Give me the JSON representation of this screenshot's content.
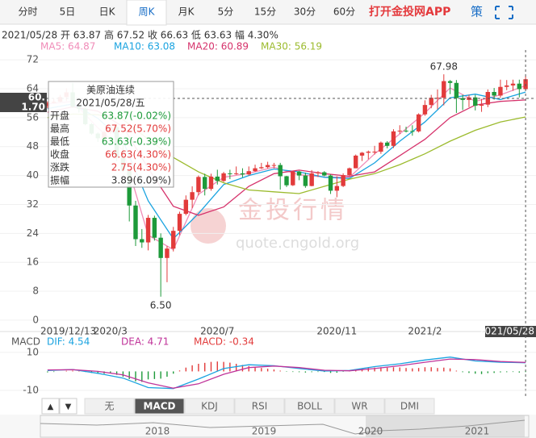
{
  "tabs": [
    "分时",
    "5日",
    "日K",
    "周K",
    "月K",
    "5分",
    "15分",
    "30分",
    "60分"
  ],
  "active_tab": 3,
  "app_link": "打开金投网APP",
  "strategy": "策",
  "quote_line": "2021/05/28 开 63.87 高 67.52 收 66.63 低 63.63 幅 4.30%",
  "crosshair": [
    "60.",
    "1.70"
  ],
  "watermark": [
    "金投行情",
    "quote.cngold.org"
  ],
  "tooltip": {
    "title": "美原油连续",
    "date": "2021/05/28/五",
    "rows": [
      {
        "label": "开盘",
        "value": "63.87(-0.02%)",
        "color": "#1d9a3a"
      },
      {
        "label": "最高",
        "value": "67.52(5.70%)",
        "color": "#e23b3b"
      },
      {
        "label": "最低",
        "value": "63.63(-0.39%)",
        "color": "#1d9a3a"
      },
      {
        "label": "收盘",
        "value": "66.63(4.30%)",
        "color": "#e23b3b"
      },
      {
        "label": "涨跌",
        "value": "2.75(4.30%)",
        "color": "#e23b3b"
      },
      {
        "label": "振幅",
        "value": "3.89(6.09%)",
        "color": "#333333"
      }
    ]
  },
  "indicators": [
    "无",
    "MACD",
    "KDJ",
    "RSI",
    "BOLL",
    "WR",
    "DMI"
  ],
  "active_indicator": 1,
  "buttons": [
    "▲",
    "▼"
  ],
  "navigator": [
    "2018",
    "2019",
    "2020",
    "2021"
  ],
  "chart_data": [
    {
      "type": "candlestick",
      "up_color": "#e23b3b",
      "down_color": "#1d9a3a",
      "categories": [
        "2019/12/13",
        null,
        null,
        null,
        null,
        null,
        null,
        null,
        null,
        null,
        "2020/3",
        null,
        null,
        null,
        null,
        null,
        null,
        null,
        null,
        null,
        null,
        null,
        null,
        null,
        null,
        null,
        null,
        "2020/7",
        null,
        null,
        null,
        null,
        null,
        null,
        null,
        null,
        null,
        null,
        null,
        null,
        null,
        null,
        null,
        null,
        null,
        null,
        "2020/11",
        null,
        null,
        null,
        null,
        null,
        null,
        null,
        null,
        null,
        null,
        null,
        null,
        null,
        "2021/2",
        null,
        null,
        null,
        null,
        null,
        null,
        null,
        null,
        null,
        null,
        null,
        null,
        null,
        null,
        null,
        "2021/05/28"
      ],
      "open": [
        59.2,
        60.1,
        60.4,
        61.7,
        63.0,
        59.0,
        58.5,
        54.2,
        51.6,
        50.3,
        52.0,
        53.4,
        45.0,
        41.3,
        31.7,
        22.4,
        21.5,
        28.3,
        22.8,
        17.2,
        19.8,
        24.7,
        29.4,
        33.3,
        35.4,
        39.6,
        36.3,
        39.7,
        38.5,
        40.6,
        40.4,
        40.6,
        40.3,
        41.2,
        42.0,
        42.3,
        42.9,
        42.9,
        39.8,
        37.3,
        41.1,
        40.0,
        37.1,
        40.6,
        40.9,
        40.0,
        35.8,
        37.1,
        40.1,
        42.0,
        45.5,
        46.3,
        46.6,
        46.6,
        49.1,
        48.2,
        52.2,
        52.4,
        52.3,
        52.2,
        56.9,
        59.5,
        61.5,
        61.5,
        66.1,
        65.6,
        61.4,
        60.9,
        61.6,
        59.3,
        59.6,
        63.1,
        62.1,
        64.5,
        64.9,
        65.4,
        63.87
      ],
      "high": [
        60.5,
        61.2,
        62.3,
        64.1,
        65.6,
        59.5,
        58.8,
        54.5,
        51.9,
        52.4,
        54.0,
        53.8,
        48.7,
        41.5,
        33.0,
        25.2,
        29.1,
        28.9,
        24.0,
        20.5,
        25.8,
        30.0,
        34.5,
        37.0,
        40.0,
        40.5,
        40.5,
        41.6,
        41.0,
        41.6,
        42.5,
        42.0,
        42.5,
        43.0,
        43.5,
        43.8,
        43.5,
        43.5,
        39.9,
        41.3,
        41.3,
        40.8,
        41.5,
        41.2,
        41.2,
        40.3,
        39.8,
        40.6,
        42.2,
        45.8,
        46.5,
        46.9,
        48.2,
        49.4,
        49.5,
        52.8,
        53.9,
        53.5,
        53.9,
        57.2,
        60.8,
        62.3,
        63.8,
        67.98,
        66.4,
        66.4,
        62.3,
        62.3,
        62.3,
        61.2,
        63.8,
        64.2,
        66.5,
        66.4,
        66.5,
        66.5,
        67.52
      ],
      "low": [
        58.6,
        59.9,
        60.3,
        60.6,
        58.7,
        57.4,
        53.9,
        51.3,
        49.3,
        49.7,
        51.5,
        44.0,
        41.0,
        27.3,
        20.5,
        20.0,
        19.3,
        22.0,
        6.5,
        10.5,
        19.0,
        23.5,
        29.0,
        31.0,
        34.5,
        34.5,
        35.8,
        37.5,
        38.2,
        39.0,
        40.2,
        39.5,
        40.0,
        41.0,
        41.8,
        42.0,
        42.0,
        36.1,
        36.8,
        37.1,
        38.7,
        36.6,
        37.0,
        39.6,
        39.8,
        34.9,
        34.0,
        36.8,
        39.9,
        42.0,
        44.0,
        44.5,
        45.8,
        46.0,
        47.5,
        47.6,
        51.5,
        51.9,
        51.0,
        51.9,
        56.5,
        58.6,
        58.3,
        59.4,
        62.5,
        57.3,
        58.1,
        58.9,
        58.0,
        57.6,
        58.9,
        61.0,
        61.5,
        63.6,
        63.4,
        61.6,
        63.63
      ],
      "close": [
        60.1,
        60.4,
        61.7,
        63.0,
        59.0,
        58.5,
        54.2,
        51.6,
        50.3,
        52.0,
        53.4,
        45.0,
        41.3,
        31.7,
        22.4,
        21.5,
        28.3,
        22.8,
        17.2,
        19.8,
        24.7,
        29.4,
        33.3,
        35.4,
        39.6,
        36.3,
        39.7,
        38.5,
        40.6,
        40.4,
        40.6,
        40.3,
        41.2,
        42.0,
        42.3,
        42.9,
        42.9,
        39.8,
        37.3,
        41.1,
        40.0,
        37.1,
        40.6,
        40.9,
        40.0,
        35.8,
        37.1,
        40.1,
        42.0,
        45.5,
        46.3,
        46.6,
        46.6,
        49.1,
        48.2,
        52.2,
        52.4,
        52.3,
        52.2,
        56.9,
        59.5,
        61.5,
        61.5,
        66.1,
        65.6,
        61.4,
        60.9,
        61.6,
        59.3,
        59.6,
        63.1,
        62.1,
        64.5,
        64.9,
        65.4,
        63.89,
        66.63
      ],
      "series": [
        {
          "name": "MA5",
          "legend_label": "MA5: 64.87",
          "color": "#f08cb8",
          "x": [
            0,
            4,
            8,
            12,
            16,
            20,
            24,
            28,
            32,
            36,
            40,
            44,
            48,
            52,
            56,
            60,
            64,
            68,
            72,
            76
          ],
          "values": [
            59.8,
            60.5,
            53.2,
            47.0,
            23.5,
            19.5,
            34.8,
            39.5,
            40.6,
            42.3,
            40.2,
            39.6,
            39.5,
            46.0,
            51.5,
            57.3,
            64.2,
            60.5,
            62.3,
            64.87
          ]
        },
        {
          "name": "MA10",
          "legend_label": "MA10: 63.08",
          "color": "#1aa3e0",
          "x": [
            0,
            4,
            8,
            12,
            16,
            20,
            24,
            28,
            32,
            36,
            40,
            44,
            48,
            52,
            56,
            60,
            64,
            68,
            72,
            76
          ],
          "values": [
            58.5,
            59.8,
            55.8,
            49.5,
            33.0,
            22.5,
            29.5,
            37.5,
            40.0,
            41.8,
            41.0,
            39.5,
            39.2,
            43.5,
            49.5,
            54.8,
            61.5,
            62.5,
            61.0,
            63.08
          ]
        },
        {
          "name": "MA20",
          "legend_label": "MA20: 60.89",
          "color": "#d6336c",
          "x": [
            0,
            4,
            8,
            12,
            16,
            20,
            24,
            28,
            32,
            36,
            40,
            44,
            48,
            52,
            56,
            60,
            64,
            68,
            72,
            76
          ],
          "values": [
            57.5,
            59.0,
            57.8,
            53.5,
            42.0,
            31.5,
            29.0,
            31.3,
            37.0,
            40.5,
            41.5,
            40.5,
            39.8,
            41.0,
            45.5,
            50.0,
            56.0,
            59.5,
            60.5,
            60.89
          ]
        },
        {
          "name": "MA30",
          "legend_label": "MA30: 56.19",
          "color": "#9cbb2e",
          "x": [
            0,
            4,
            8,
            12,
            16,
            20,
            24,
            28,
            32,
            36,
            40,
            44,
            48,
            52,
            56,
            60,
            64,
            68,
            72,
            76
          ],
          "values": [
            56.0,
            57.0,
            56.8,
            55.5,
            50.0,
            45.0,
            41.0,
            38.0,
            36.0,
            35.5,
            35.0,
            37.0,
            39.0,
            40.5,
            43.0,
            46.0,
            49.5,
            52.5,
            54.8,
            56.19
          ]
        }
      ],
      "annotations": [
        {
          "text": "67.98",
          "x": 63,
          "y": 67.98
        },
        {
          "text": "6.50",
          "x": 18,
          "y": 6.5
        }
      ],
      "ylim": [
        -1.8,
        74.7
      ],
      "yticks": [
        0,
        8,
        16,
        24,
        32,
        40,
        48,
        56,
        64,
        72
      ],
      "grid": true
    },
    {
      "type": "macd",
      "title": "MACD",
      "up_color": "#e23b3b",
      "down_color": "#1d9a3a",
      "values": [
        -0.5,
        -0.3,
        0,
        0.3,
        0.4,
        0.2,
        -0.3,
        -0.8,
        -1.2,
        -1.2,
        -1.0,
        -1.8,
        -2.8,
        -4.0,
        -5.2,
        -5.5,
        -4.2,
        -4.0,
        -3.8,
        -2.8,
        -1.2,
        0.5,
        2.0,
        3.2,
        4.0,
        4.5,
        5.0,
        5.2,
        5.0,
        4.6,
        4.0,
        3.4,
        2.8,
        2.2,
        1.8,
        1.4,
        1.0,
        0.4,
        -0.2,
        -0.3,
        -0.4,
        -0.6,
        -0.4,
        -0.3,
        -0.3,
        -0.8,
        -0.7,
        -0.2,
        0.4,
        1.0,
        1.6,
        1.9,
        2.0,
        2.2,
        2.0,
        2.2,
        2.1,
        1.8,
        1.6,
        1.8,
        2.2,
        2.2,
        1.8,
        2.0,
        1.6,
        0.4,
        -0.4,
        -0.8,
        -1.2,
        -1.4,
        -0.9,
        -0.8,
        -0.5,
        -0.4,
        -0.3,
        -0.6,
        -0.34
      ],
      "value_legend": "MACD: -0.34",
      "series": [
        {
          "name": "DIF",
          "legend_label": "DIF: 4.54",
          "color": "#1aa3e0",
          "x": [
            0,
            4,
            8,
            12,
            16,
            20,
            24,
            28,
            32,
            36,
            40,
            44,
            48,
            52,
            56,
            60,
            64,
            68,
            72,
            76
          ],
          "values": [
            0.5,
            1.0,
            -1.0,
            -3.5,
            -8.5,
            -9.0,
            -4.0,
            1.5,
            3.5,
            3.0,
            1.5,
            0.2,
            0.5,
            2.5,
            4.0,
            6.0,
            7.5,
            5.5,
            4.8,
            4.54
          ]
        },
        {
          "name": "DEA",
          "legend_label": "DEA: 4.71",
          "color": "#c0349a",
          "x": [
            0,
            4,
            8,
            12,
            16,
            20,
            24,
            28,
            32,
            36,
            40,
            44,
            48,
            52,
            56,
            60,
            64,
            68,
            72,
            76
          ],
          "values": [
            0.8,
            0.9,
            0.0,
            -1.8,
            -6.0,
            -8.8,
            -6.5,
            -1.5,
            2.0,
            2.8,
            2.0,
            0.6,
            0.3,
            1.5,
            3.0,
            4.8,
            6.5,
            6.2,
            5.2,
            4.71
          ]
        }
      ],
      "ylim": [
        -13.8,
        12.9
      ],
      "yticks": [
        10,
        -10
      ]
    }
  ]
}
